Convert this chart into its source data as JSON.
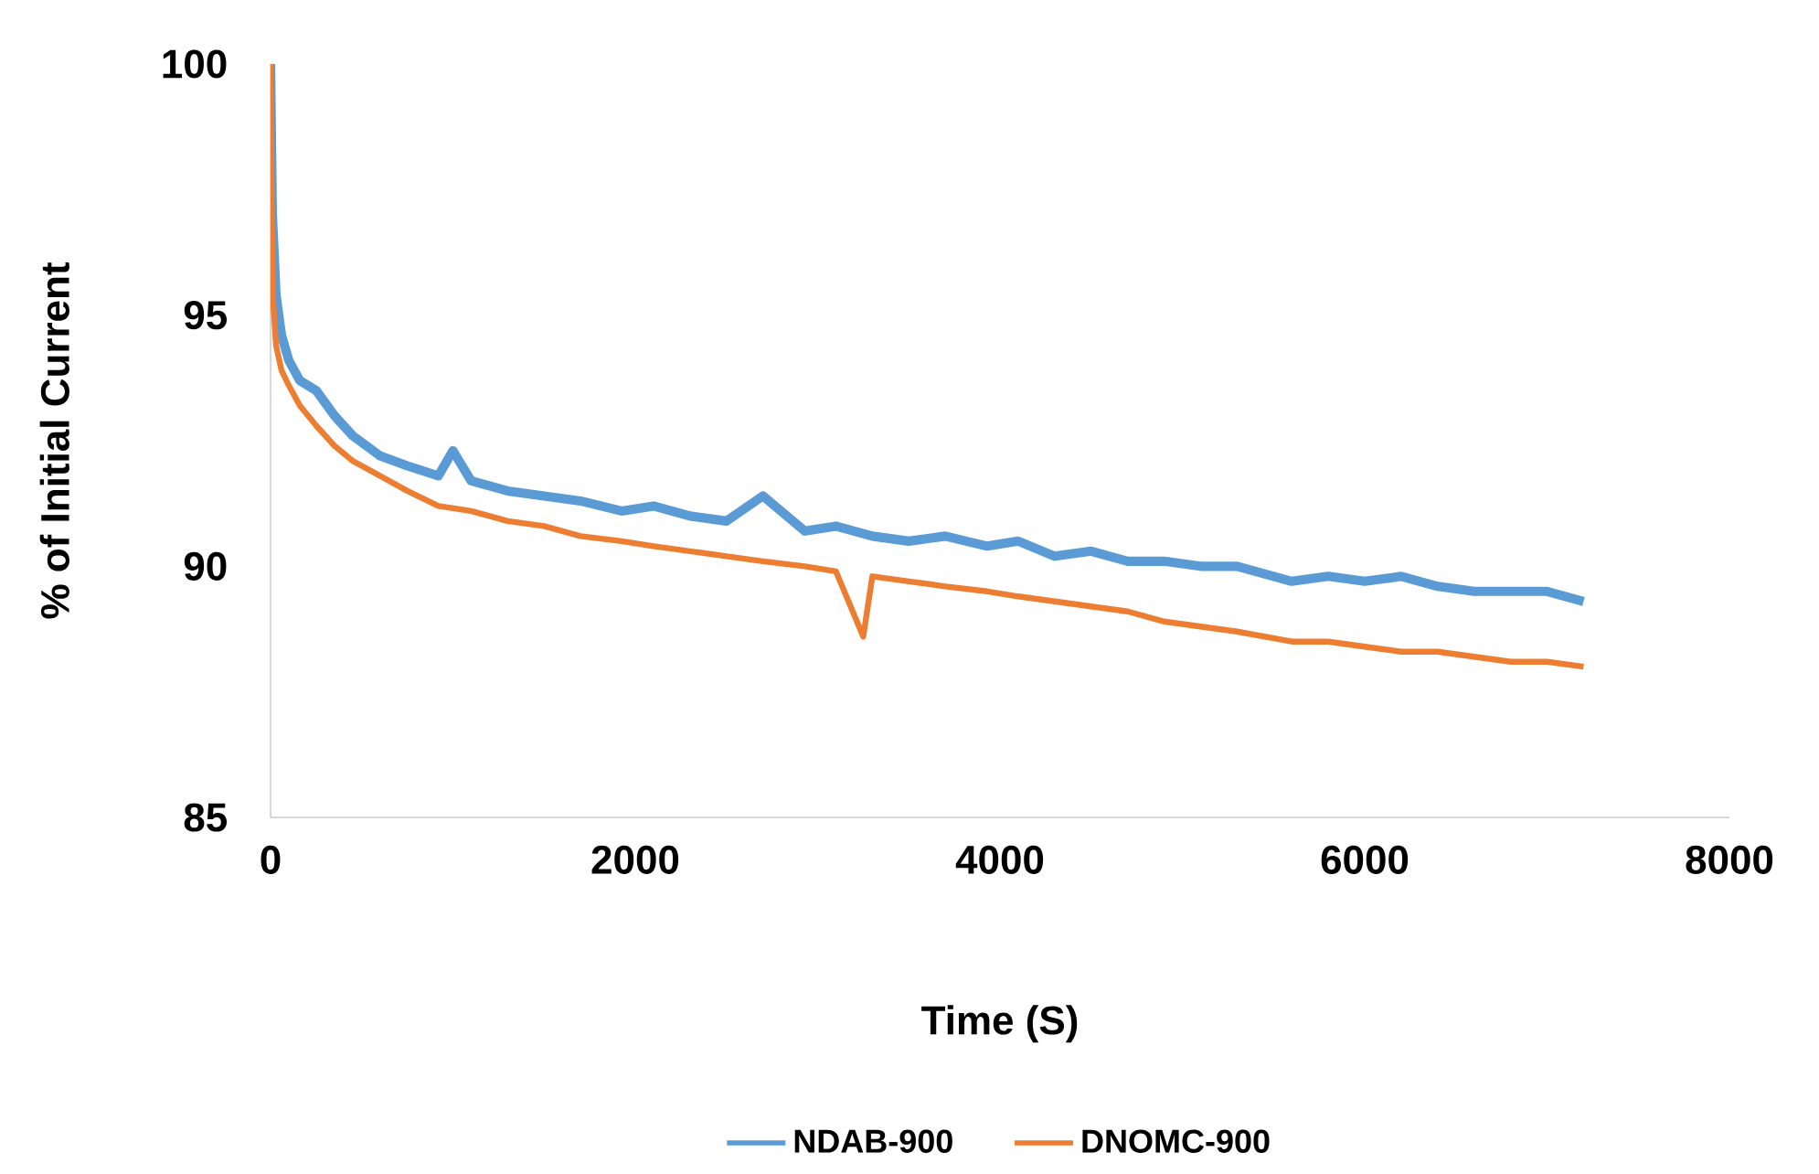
{
  "chart_data": {
    "type": "line",
    "xlabel": "Time (S)",
    "ylabel": "% of Initial Current",
    "xlim": [
      0,
      8000
    ],
    "ylim": [
      85,
      100
    ],
    "xticks": [
      0,
      2000,
      4000,
      6000,
      8000
    ],
    "yticks": [
      85,
      90,
      95,
      100
    ],
    "legend": "bottom",
    "grid": false,
    "marker": "none",
    "line_style": "solid",
    "series": [
      {
        "name": "NDAB-900",
        "color": "#5b9bd5",
        "x": [
          0,
          10,
          30,
          60,
          100,
          160,
          250,
          350,
          450,
          600,
          750,
          920,
          1000,
          1100,
          1300,
          1500,
          1700,
          1925,
          2100,
          2300,
          2500,
          2700,
          2930,
          3100,
          3300,
          3500,
          3700,
          3930,
          4100,
          4300,
          4500,
          4700,
          4900,
          5100,
          5300,
          5600,
          5800,
          6000,
          6200,
          6400,
          6600,
          6800,
          7000,
          7200
        ],
        "values": [
          100,
          97,
          95.4,
          94.6,
          94.1,
          93.7,
          93.5,
          93,
          92.6,
          92.2,
          92,
          91.8,
          92.3,
          91.7,
          91.5,
          91.4,
          91.3,
          91.1,
          91.2,
          91,
          90.9,
          91.4,
          90.7,
          90.8,
          90.6,
          90.5,
          90.6,
          90.4,
          90.5,
          90.2,
          90.3,
          90.1,
          90.1,
          90,
          90,
          89.7,
          89.8,
          89.7,
          89.8,
          89.6,
          89.5,
          89.5,
          89.5,
          89.3
        ]
      },
      {
        "name": "DNOMC-900",
        "color": "#ed7d31",
        "x": [
          0,
          10,
          30,
          60,
          100,
          160,
          250,
          350,
          450,
          600,
          750,
          920,
          1100,
          1300,
          1500,
          1700,
          1925,
          2100,
          2300,
          2500,
          2700,
          2930,
          3100,
          3250,
          3300,
          3500,
          3700,
          3930,
          4100,
          4300,
          4500,
          4700,
          4900,
          5100,
          5300,
          5600,
          5800,
          6000,
          6200,
          6400,
          6600,
          6800,
          7000,
          7200
        ],
        "values": [
          100,
          95.5,
          94.4,
          93.9,
          93.6,
          93.2,
          92.8,
          92.4,
          92.1,
          91.8,
          91.5,
          91.2,
          91.1,
          90.9,
          90.8,
          90.6,
          90.5,
          90.4,
          90.3,
          90.2,
          90.1,
          90,
          89.9,
          88.6,
          89.8,
          89.7,
          89.6,
          89.5,
          89.4,
          89.3,
          89.2,
          89.1,
          88.9,
          88.8,
          88.7,
          88.5,
          88.5,
          88.4,
          88.3,
          88.3,
          88.2,
          88.1,
          88.1,
          88
        ]
      }
    ]
  }
}
